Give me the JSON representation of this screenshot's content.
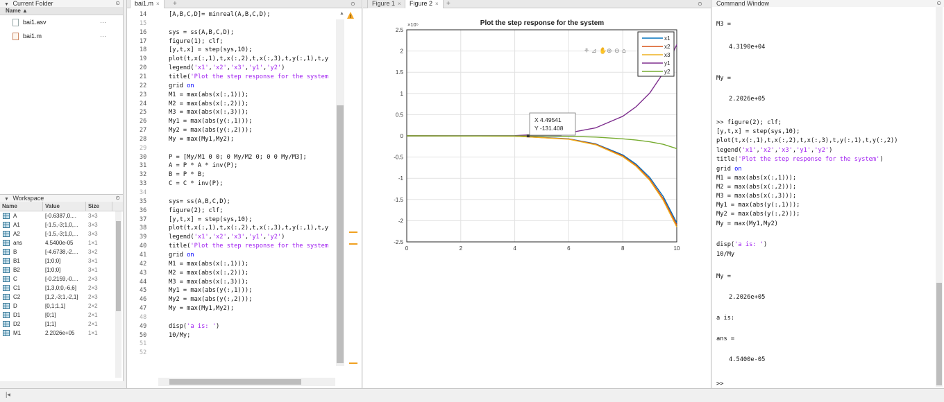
{
  "current_folder": {
    "title": "Current Folder",
    "column_name": "Name ▲",
    "files": [
      {
        "name": "bai1.asv",
        "dots": "···"
      },
      {
        "name": "bai1.m",
        "dots": "···"
      }
    ]
  },
  "workspace": {
    "title": "Workspace",
    "columns": {
      "name": "Name",
      "value": "Value",
      "size": "Size"
    },
    "vars": [
      {
        "name": "A",
        "value": "[-0.6387,0....",
        "size": "3×3"
      },
      {
        "name": "A1",
        "value": "[-1.5,-3;1,0,...",
        "size": "3×3"
      },
      {
        "name": "A2",
        "value": "[-1.5,-3;1,0,...",
        "size": "3×3"
      },
      {
        "name": "ans",
        "value": "4.5400e-05",
        "size": "1×1"
      },
      {
        "name": "B",
        "value": "[-4.6738,-2....",
        "size": "3×2"
      },
      {
        "name": "B1",
        "value": "[1;0;0]",
        "size": "3×1"
      },
      {
        "name": "B2",
        "value": "[1;0;0]",
        "size": "3×1"
      },
      {
        "name": "C",
        "value": "[-0.2159,-0....",
        "size": "2×3"
      },
      {
        "name": "C1",
        "value": "[1,3,0;0,-6,6]",
        "size": "2×3"
      },
      {
        "name": "C2",
        "value": "[1,2,-3;1,-2,1]",
        "size": "2×3"
      },
      {
        "name": "D",
        "value": "[0,1;1,1]",
        "size": "2×2"
      },
      {
        "name": "D1",
        "value": "[0;1]",
        "size": "2×1"
      },
      {
        "name": "D2",
        "value": "[1;1]",
        "size": "2×1"
      },
      {
        "name": "M1",
        "value": "2.2026e+05",
        "size": "1×1"
      }
    ]
  },
  "editor": {
    "tab_label": "bai1.m",
    "lines": [
      {
        "n": "14",
        "code": "[A,B,C,D]= minreal(A,B,C,D);"
      },
      {
        "n": "15",
        "code": ""
      },
      {
        "n": "16",
        "code": "sys = ss(A,B,C,D);"
      },
      {
        "n": "17",
        "code": "figure(1); clf;"
      },
      {
        "n": "18",
        "code": "[y,t,x] = step(sys,10);"
      },
      {
        "n": "19",
        "code": "plot(t,x(:,1),t,x(:,2),t,x(:,3),t,y(:,1),t,y"
      },
      {
        "n": "20",
        "code": "legend('x1','x2','x3','y1','y2')"
      },
      {
        "n": "21",
        "code": "title('Plot the step response for the system"
      },
      {
        "n": "22",
        "code": "grid on"
      },
      {
        "n": "23",
        "code": "M1 = max(abs(x(:,1)));"
      },
      {
        "n": "24",
        "code": "M2 = max(abs(x(:,2)));"
      },
      {
        "n": "25",
        "code": "M3 = max(abs(x(:,3)));"
      },
      {
        "n": "26",
        "code": "My1 = max(abs(y(:,1)));"
      },
      {
        "n": "27",
        "code": "My2 = max(abs(y(:,2)));"
      },
      {
        "n": "28",
        "code": "My = max(My1,My2);"
      },
      {
        "n": "29",
        "code": ""
      },
      {
        "n": "30",
        "code": "P = [My/M1 0 0; 0 My/M2 0; 0 0 My/M3];"
      },
      {
        "n": "31",
        "code": "A = P * A * inv(P);"
      },
      {
        "n": "32",
        "code": "B = P * B;"
      },
      {
        "n": "33",
        "code": "C = C * inv(P);"
      },
      {
        "n": "34",
        "code": ""
      },
      {
        "n": "35",
        "code": "sys= ss(A,B,C,D);"
      },
      {
        "n": "36",
        "code": "figure(2); clf;"
      },
      {
        "n": "37",
        "code": "[y,t,x] = step(sys,10);"
      },
      {
        "n": "38",
        "code": "plot(t,x(:,1),t,x(:,2),t,x(:,3),t,y(:,1),t,y"
      },
      {
        "n": "39",
        "code": "legend('x1','x2','x3','y1','y2')"
      },
      {
        "n": "40",
        "code": "title('Plot the step response for the system"
      },
      {
        "n": "41",
        "code": "grid on"
      },
      {
        "n": "42",
        "code": "M1 = max(abs(x(:,1)));"
      },
      {
        "n": "43",
        "code": "M2 = max(abs(x(:,2)));"
      },
      {
        "n": "44",
        "code": "M3 = max(abs(x(:,3)));"
      },
      {
        "n": "45",
        "code": "My1 = max(abs(y(:,1)));"
      },
      {
        "n": "46",
        "code": "My2 = max(abs(y(:,2)));"
      },
      {
        "n": "47",
        "code": "My = max(My1,My2);"
      },
      {
        "n": "48",
        "code": ""
      },
      {
        "n": "49",
        "code": "disp('a is: ')"
      },
      {
        "n": "50",
        "code": "10/My;"
      },
      {
        "n": "51",
        "code": ""
      },
      {
        "n": "52",
        "code": ""
      }
    ]
  },
  "figure": {
    "tab1": "Figure 1",
    "tab2": "Figure 2",
    "datatip_x": "X 4.49541",
    "datatip_y": "Y -131.408",
    "toolbar_icons": [
      "brush-icon",
      "datatip-icon",
      "pan-icon",
      "zoom-in-icon",
      "zoom-out-icon",
      "home-icon"
    ]
  },
  "chart_data": {
    "type": "line",
    "title": "Plot the step response for the system",
    "exponent_label": "×10⁵",
    "xlim": [
      0,
      10
    ],
    "ylim": [
      -2.5,
      2.5
    ],
    "xticks": [
      "0",
      "2",
      "4",
      "6",
      "8",
      "10"
    ],
    "yticks": [
      "2.5",
      "2",
      "1.5",
      "1",
      "0.5",
      "0",
      "-0.5",
      "-1",
      "-1.5",
      "-2",
      "-2.5"
    ],
    "legend_position": "top-right",
    "series": [
      {
        "name": "x1",
        "color": "#0072bd",
        "x": [
          0,
          4,
          6,
          7,
          8,
          8.5,
          9,
          9.5,
          10
        ],
        "y": [
          0,
          -0.005,
          -0.07,
          -0.19,
          -0.45,
          -0.67,
          -0.98,
          -1.43,
          -2.05
        ]
      },
      {
        "name": "x2",
        "color": "#d95319",
        "x": [
          0,
          4,
          6,
          7,
          8,
          8.5,
          9,
          9.5,
          10
        ],
        "y": [
          0,
          -0.006,
          -0.075,
          -0.2,
          -0.47,
          -0.7,
          -1.02,
          -1.48,
          -2.1
        ]
      },
      {
        "name": "x3",
        "color": "#edb120",
        "x": [
          0,
          4,
          6,
          7,
          8,
          8.5,
          9,
          9.5,
          10
        ],
        "y": [
          0,
          -0.007,
          -0.08,
          -0.21,
          -0.49,
          -0.72,
          -1.05,
          -1.52,
          -2.15
        ]
      },
      {
        "name": "y1",
        "color": "#7e2f8e",
        "x": [
          0,
          4,
          6,
          7,
          8,
          8.5,
          9,
          9.5,
          10
        ],
        "y": [
          0,
          0.005,
          0.07,
          0.19,
          0.46,
          0.69,
          1.01,
          1.48,
          2.15
        ]
      },
      {
        "name": "y2",
        "color": "#77ac30",
        "x": [
          0,
          4,
          6,
          7,
          8,
          8.5,
          9,
          9.5,
          10
        ],
        "y": [
          0,
          -0.001,
          -0.012,
          -0.03,
          -0.07,
          -0.1,
          -0.14,
          -0.2,
          -0.3
        ]
      }
    ]
  },
  "command_window": {
    "title": "Command Window",
    "lines": [
      {
        "t": "M3 =",
        "ind": false
      },
      {
        "t": "4.3190e+04",
        "ind": true
      },
      {
        "t": "My =",
        "ind": false
      },
      {
        "t": "2.2026e+05",
        "ind": true
      },
      {
        "t": ">> figure(2); clf;",
        "ind": false
      },
      {
        "t": "[y,t,x] = step(sys,10);",
        "ind": false
      },
      {
        "t": "plot(t,x(:,1),t,x(:,2),t,x(:,3),t,y(:,1),t,y(:,2))",
        "ind": false
      },
      {
        "t": "legend('x1','x2','x3','y1','y2')",
        "ind": false
      },
      {
        "t": "title('Plot the step response for the system')",
        "ind": false
      },
      {
        "t": "grid on",
        "ind": false
      },
      {
        "t": "M1 = max(abs(x(:,1)));",
        "ind": false
      },
      {
        "t": "M2 = max(abs(x(:,2)));",
        "ind": false
      },
      {
        "t": "M3 = max(abs(x(:,3)));",
        "ind": false
      },
      {
        "t": "My1 = max(abs(y(:,1)));",
        "ind": false
      },
      {
        "t": "My2 = max(abs(y(:,2)));",
        "ind": false
      },
      {
        "t": "My = max(My1,My2)",
        "ind": false
      },
      {
        "t": "disp('a is: ')",
        "ind": false
      },
      {
        "t": "10/My",
        "ind": false
      },
      {
        "t": "My =",
        "ind": false
      },
      {
        "t": "2.2026e+05",
        "ind": true
      },
      {
        "t": "a is:",
        "ind": false
      },
      {
        "t": "ans =",
        "ind": false
      },
      {
        "t": "4.5400e-05",
        "ind": true
      },
      {
        "t": ">>",
        "ind": false
      }
    ]
  },
  "colors": {
    "accent": "#0072bd",
    "warning": "#f0a020"
  }
}
